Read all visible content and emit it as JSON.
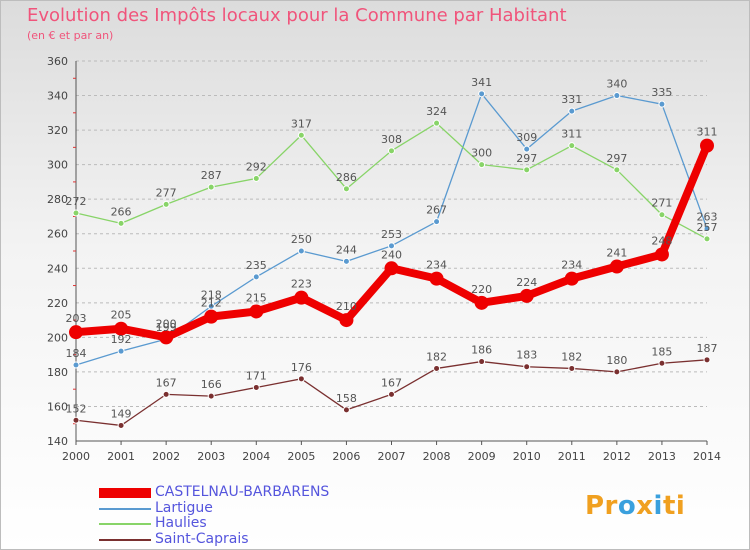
{
  "chart_data": {
    "type": "line",
    "title": "Evolution des Impôts locaux pour la Commune par Habitant",
    "subtitle": "(en € et par an)",
    "xlabel": "",
    "ylabel": "",
    "x": [
      "2000",
      "2001",
      "2002",
      "2003",
      "2004",
      "2005",
      "2006",
      "2007",
      "2008",
      "2009",
      "2010",
      "2011",
      "2012",
      "2013",
      "2014"
    ],
    "ylim": [
      140,
      360
    ],
    "yticks": [
      140,
      160,
      180,
      200,
      220,
      240,
      260,
      280,
      300,
      320,
      340,
      360
    ],
    "grid": "horizontal dashed",
    "legend_position": "bottom-left",
    "series": [
      {
        "name": "CASTELNAU-BARBARENS",
        "color": "#ee0000",
        "emphasis": true,
        "values": [
          203,
          205,
          200,
          212,
          215,
          223,
          210,
          240,
          234,
          220,
          224,
          234,
          241,
          248,
          311
        ]
      },
      {
        "name": "Lartigue",
        "color": "#5a9ad0",
        "emphasis": false,
        "values": [
          184,
          192,
          199,
          218,
          235,
          250,
          244,
          253,
          267,
          341,
          309,
          331,
          340,
          335,
          263
        ]
      },
      {
        "name": "Haulies",
        "color": "#88d468",
        "emphasis": false,
        "values": [
          272,
          266,
          277,
          287,
          292,
          317,
          286,
          308,
          324,
          300,
          297,
          311,
          297,
          271,
          257
        ]
      },
      {
        "name": "Saint-Caprais",
        "color": "#7a3030",
        "emphasis": false,
        "values": [
          152,
          149,
          167,
          166,
          171,
          176,
          158,
          167,
          182,
          186,
          183,
          182,
          180,
          185,
          187
        ]
      }
    ]
  },
  "brand": {
    "letters": [
      "Pr",
      "o",
      "x",
      "i",
      "ti"
    ]
  }
}
